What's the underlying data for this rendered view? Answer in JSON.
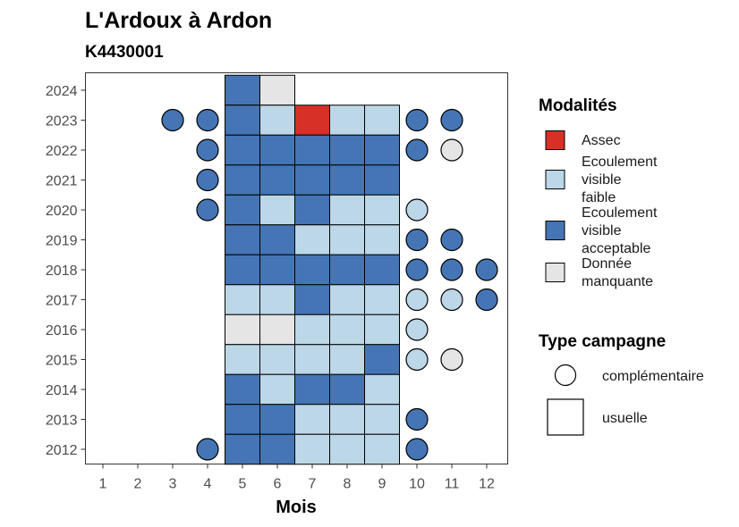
{
  "chart_data": {
    "type": "heatmap",
    "title": "L'Ardoux à Ardon",
    "subtitle": "K4430001",
    "xlabel": "Mois",
    "ylabel": "",
    "x_ticks": [
      "1",
      "2",
      "3",
      "4",
      "5",
      "6",
      "7",
      "8",
      "9",
      "10",
      "11",
      "12"
    ],
    "y_ticks": [
      "2012",
      "2013",
      "2014",
      "2015",
      "2016",
      "2017",
      "2018",
      "2019",
      "2020",
      "2021",
      "2022",
      "2023",
      "2024"
    ],
    "colors": {
      "assec": "#d73027",
      "faible": "#bcd7e7",
      "acceptable": "#4575b4",
      "manquante": "#e5e5e5"
    },
    "legend": {
      "modalites_title": "Modalités",
      "modalites": [
        {
          "key": "assec",
          "lines": [
            "Assec"
          ]
        },
        {
          "key": "faible",
          "lines": [
            "Ecoulement",
            "visible",
            "faible"
          ]
        },
        {
          "key": "acceptable",
          "lines": [
            "Ecoulement",
            "visible",
            "acceptable"
          ]
        },
        {
          "key": "manquante",
          "lines": [
            "Donnée",
            "manquante"
          ]
        }
      ],
      "campagne_title": "Type campagne",
      "campagnes": [
        {
          "shape": "circle",
          "label": "complémentaire"
        },
        {
          "shape": "square",
          "label": "usuelle"
        }
      ]
    },
    "observations": [
      {
        "year": 2024,
        "month": 5,
        "state": "acceptable",
        "campaign": "usuelle"
      },
      {
        "year": 2024,
        "month": 6,
        "state": "manquante",
        "campaign": "usuelle"
      },
      {
        "year": 2023,
        "month": 3,
        "state": "acceptable",
        "campaign": "complementaire"
      },
      {
        "year": 2023,
        "month": 4,
        "state": "acceptable",
        "campaign": "complementaire"
      },
      {
        "year": 2023,
        "month": 5,
        "state": "acceptable",
        "campaign": "usuelle"
      },
      {
        "year": 2023,
        "month": 6,
        "state": "faible",
        "campaign": "usuelle"
      },
      {
        "year": 2023,
        "month": 7,
        "state": "assec",
        "campaign": "usuelle"
      },
      {
        "year": 2023,
        "month": 8,
        "state": "faible",
        "campaign": "usuelle"
      },
      {
        "year": 2023,
        "month": 9,
        "state": "faible",
        "campaign": "usuelle"
      },
      {
        "year": 2023,
        "month": 10,
        "state": "acceptable",
        "campaign": "complementaire"
      },
      {
        "year": 2023,
        "month": 11,
        "state": "acceptable",
        "campaign": "complementaire"
      },
      {
        "year": 2022,
        "month": 4,
        "state": "acceptable",
        "campaign": "complementaire"
      },
      {
        "year": 2022,
        "month": 5,
        "state": "acceptable",
        "campaign": "usuelle"
      },
      {
        "year": 2022,
        "month": 6,
        "state": "acceptable",
        "campaign": "usuelle"
      },
      {
        "year": 2022,
        "month": 7,
        "state": "acceptable",
        "campaign": "usuelle"
      },
      {
        "year": 2022,
        "month": 8,
        "state": "acceptable",
        "campaign": "usuelle"
      },
      {
        "year": 2022,
        "month": 9,
        "state": "acceptable",
        "campaign": "usuelle"
      },
      {
        "year": 2022,
        "month": 10,
        "state": "acceptable",
        "campaign": "complementaire"
      },
      {
        "year": 2022,
        "month": 11,
        "state": "manquante",
        "campaign": "complementaire"
      },
      {
        "year": 2021,
        "month": 4,
        "state": "acceptable",
        "campaign": "complementaire"
      },
      {
        "year": 2021,
        "month": 5,
        "state": "acceptable",
        "campaign": "usuelle"
      },
      {
        "year": 2021,
        "month": 6,
        "state": "acceptable",
        "campaign": "usuelle"
      },
      {
        "year": 2021,
        "month": 7,
        "state": "acceptable",
        "campaign": "usuelle"
      },
      {
        "year": 2021,
        "month": 8,
        "state": "acceptable",
        "campaign": "usuelle"
      },
      {
        "year": 2021,
        "month": 9,
        "state": "acceptable",
        "campaign": "usuelle"
      },
      {
        "year": 2020,
        "month": 4,
        "state": "acceptable",
        "campaign": "complementaire"
      },
      {
        "year": 2020,
        "month": 5,
        "state": "acceptable",
        "campaign": "usuelle"
      },
      {
        "year": 2020,
        "month": 6,
        "state": "faible",
        "campaign": "usuelle"
      },
      {
        "year": 2020,
        "month": 7,
        "state": "acceptable",
        "campaign": "usuelle"
      },
      {
        "year": 2020,
        "month": 8,
        "state": "faible",
        "campaign": "usuelle"
      },
      {
        "year": 2020,
        "month": 9,
        "state": "faible",
        "campaign": "usuelle"
      },
      {
        "year": 2020,
        "month": 10,
        "state": "faible",
        "campaign": "complementaire"
      },
      {
        "year": 2019,
        "month": 5,
        "state": "acceptable",
        "campaign": "usuelle"
      },
      {
        "year": 2019,
        "month": 6,
        "state": "acceptable",
        "campaign": "usuelle"
      },
      {
        "year": 2019,
        "month": 7,
        "state": "faible",
        "campaign": "usuelle"
      },
      {
        "year": 2019,
        "month": 8,
        "state": "faible",
        "campaign": "usuelle"
      },
      {
        "year": 2019,
        "month": 9,
        "state": "faible",
        "campaign": "usuelle"
      },
      {
        "year": 2019,
        "month": 10,
        "state": "acceptable",
        "campaign": "complementaire"
      },
      {
        "year": 2019,
        "month": 11,
        "state": "acceptable",
        "campaign": "complementaire"
      },
      {
        "year": 2018,
        "month": 5,
        "state": "acceptable",
        "campaign": "usuelle"
      },
      {
        "year": 2018,
        "month": 6,
        "state": "acceptable",
        "campaign": "usuelle"
      },
      {
        "year": 2018,
        "month": 7,
        "state": "acceptable",
        "campaign": "usuelle"
      },
      {
        "year": 2018,
        "month": 8,
        "state": "acceptable",
        "campaign": "usuelle"
      },
      {
        "year": 2018,
        "month": 9,
        "state": "acceptable",
        "campaign": "usuelle"
      },
      {
        "year": 2018,
        "month": 10,
        "state": "acceptable",
        "campaign": "complementaire"
      },
      {
        "year": 2018,
        "month": 11,
        "state": "acceptable",
        "campaign": "complementaire"
      },
      {
        "year": 2018,
        "month": 12,
        "state": "acceptable",
        "campaign": "complementaire"
      },
      {
        "year": 2017,
        "month": 5,
        "state": "faible",
        "campaign": "usuelle"
      },
      {
        "year": 2017,
        "month": 6,
        "state": "faible",
        "campaign": "usuelle"
      },
      {
        "year": 2017,
        "month": 7,
        "state": "acceptable",
        "campaign": "usuelle"
      },
      {
        "year": 2017,
        "month": 8,
        "state": "faible",
        "campaign": "usuelle"
      },
      {
        "year": 2017,
        "month": 9,
        "state": "faible",
        "campaign": "usuelle"
      },
      {
        "year": 2017,
        "month": 10,
        "state": "faible",
        "campaign": "complementaire"
      },
      {
        "year": 2017,
        "month": 11,
        "state": "faible",
        "campaign": "complementaire"
      },
      {
        "year": 2017,
        "month": 12,
        "state": "acceptable",
        "campaign": "complementaire"
      },
      {
        "year": 2016,
        "month": 5,
        "state": "manquante",
        "campaign": "usuelle"
      },
      {
        "year": 2016,
        "month": 6,
        "state": "manquante",
        "campaign": "usuelle"
      },
      {
        "year": 2016,
        "month": 7,
        "state": "faible",
        "campaign": "usuelle"
      },
      {
        "year": 2016,
        "month": 8,
        "state": "faible",
        "campaign": "usuelle"
      },
      {
        "year": 2016,
        "month": 9,
        "state": "faible",
        "campaign": "usuelle"
      },
      {
        "year": 2016,
        "month": 10,
        "state": "faible",
        "campaign": "complementaire"
      },
      {
        "year": 2015,
        "month": 5,
        "state": "faible",
        "campaign": "usuelle"
      },
      {
        "year": 2015,
        "month": 6,
        "state": "faible",
        "campaign": "usuelle"
      },
      {
        "year": 2015,
        "month": 7,
        "state": "faible",
        "campaign": "usuelle"
      },
      {
        "year": 2015,
        "month": 8,
        "state": "faible",
        "campaign": "usuelle"
      },
      {
        "year": 2015,
        "month": 9,
        "state": "acceptable",
        "campaign": "usuelle"
      },
      {
        "year": 2015,
        "month": 10,
        "state": "faible",
        "campaign": "complementaire"
      },
      {
        "year": 2015,
        "month": 11,
        "state": "manquante",
        "campaign": "complementaire"
      },
      {
        "year": 2014,
        "month": 5,
        "state": "acceptable",
        "campaign": "usuelle"
      },
      {
        "year": 2014,
        "month": 6,
        "state": "faible",
        "campaign": "usuelle"
      },
      {
        "year": 2014,
        "month": 7,
        "state": "acceptable",
        "campaign": "usuelle"
      },
      {
        "year": 2014,
        "month": 8,
        "state": "acceptable",
        "campaign": "usuelle"
      },
      {
        "year": 2014,
        "month": 9,
        "state": "faible",
        "campaign": "usuelle"
      },
      {
        "year": 2013,
        "month": 5,
        "state": "acceptable",
        "campaign": "usuelle"
      },
      {
        "year": 2013,
        "month": 6,
        "state": "acceptable",
        "campaign": "usuelle"
      },
      {
        "year": 2013,
        "month": 7,
        "state": "faible",
        "campaign": "usuelle"
      },
      {
        "year": 2013,
        "month": 8,
        "state": "faible",
        "campaign": "usuelle"
      },
      {
        "year": 2013,
        "month": 9,
        "state": "faible",
        "campaign": "usuelle"
      },
      {
        "year": 2013,
        "month": 10,
        "state": "acceptable",
        "campaign": "complementaire"
      },
      {
        "year": 2012,
        "month": 4,
        "state": "acceptable",
        "campaign": "complementaire"
      },
      {
        "year": 2012,
        "month": 5,
        "state": "acceptable",
        "campaign": "usuelle"
      },
      {
        "year": 2012,
        "month": 6,
        "state": "acceptable",
        "campaign": "usuelle"
      },
      {
        "year": 2012,
        "month": 7,
        "state": "faible",
        "campaign": "usuelle"
      },
      {
        "year": 2012,
        "month": 8,
        "state": "faible",
        "campaign": "usuelle"
      },
      {
        "year": 2012,
        "month": 9,
        "state": "faible",
        "campaign": "usuelle"
      },
      {
        "year": 2012,
        "month": 10,
        "state": "acceptable",
        "campaign": "complementaire"
      }
    ]
  }
}
